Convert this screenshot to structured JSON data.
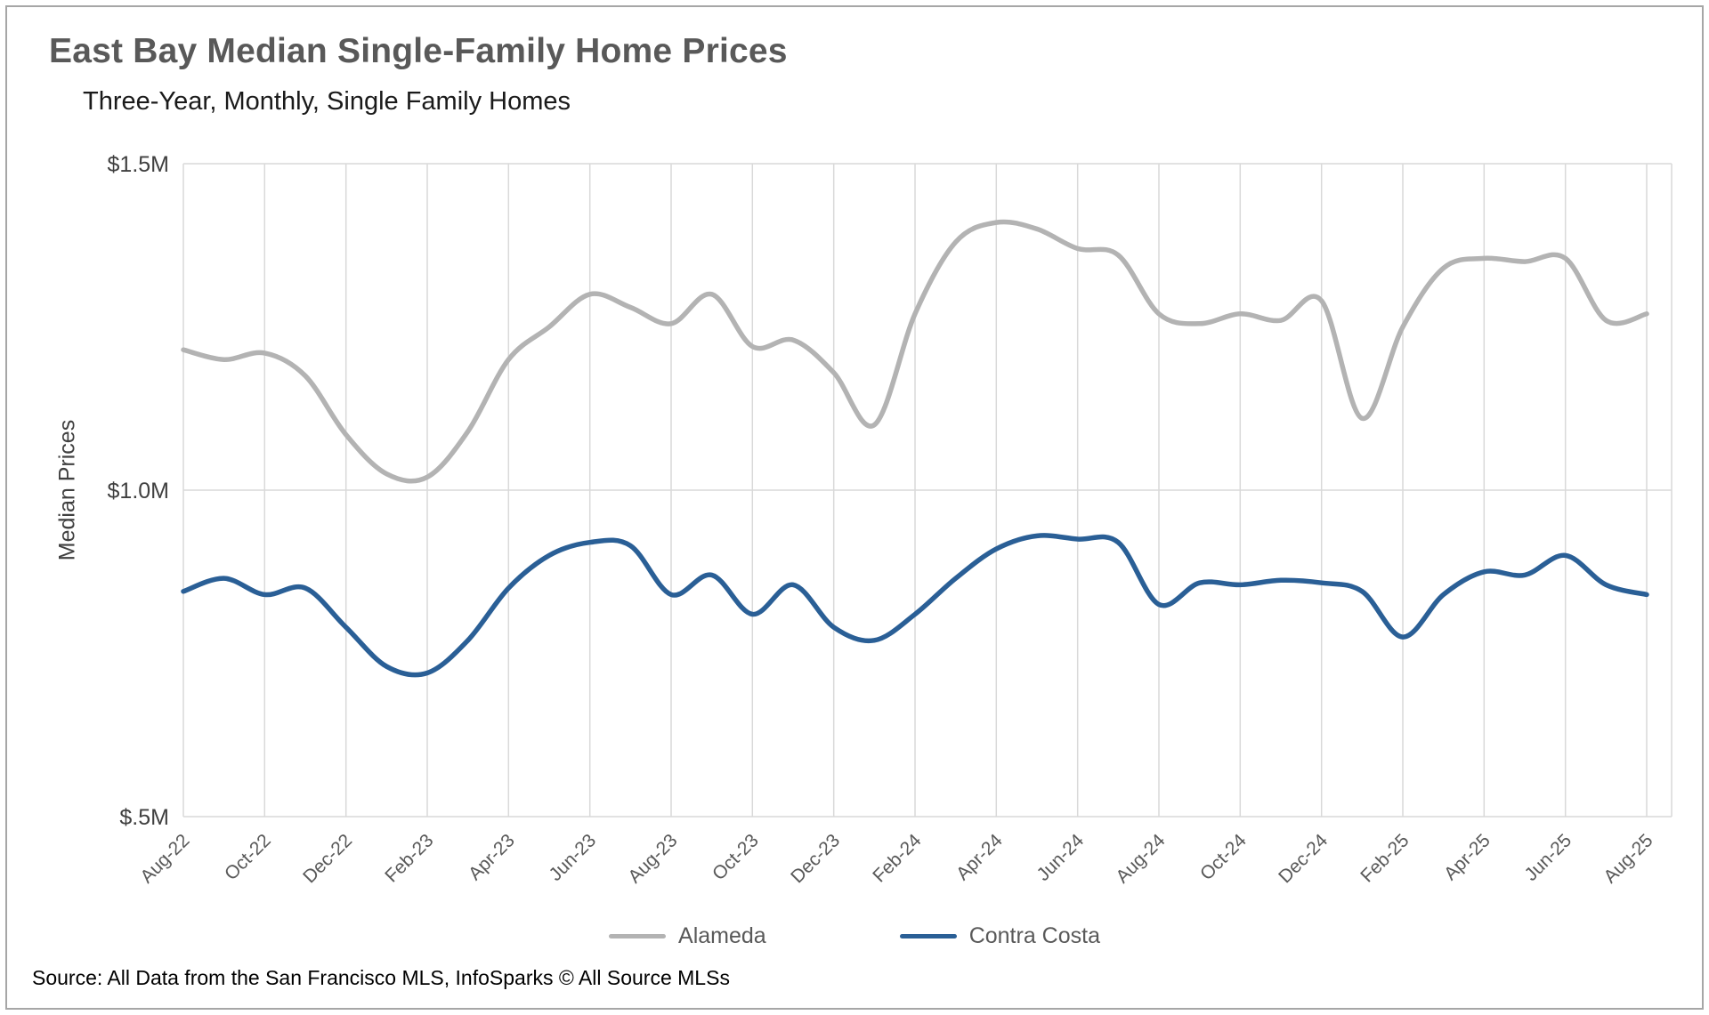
{
  "title": "East Bay Median Single-Family Home Prices",
  "subtitle": "Three-Year, Monthly, Single Family Homes",
  "source": "Source: All Data from the San Francisco MLS, InfoSparks © All Source MLSs",
  "chart_data": {
    "type": "line",
    "title": "East Bay Median Single-Family Home Prices",
    "subtitle": "Three-Year, Monthly, Single Family Homes",
    "xlabel": "",
    "ylabel": "Median Prices",
    "ylim": [
      0.5,
      1.5
    ],
    "y_ticks": [
      {
        "value": 1.5,
        "label": "$1.5M"
      },
      {
        "value": 1.0,
        "label": "$1.0M"
      },
      {
        "value": 0.5,
        "label": "$.5M"
      }
    ],
    "x_tick_step": 2,
    "grid": "on",
    "legend_position": "bottom",
    "x": [
      "Aug-22",
      "Sep-22",
      "Oct-22",
      "Nov-22",
      "Dec-22",
      "Jan-23",
      "Feb-23",
      "Mar-23",
      "Apr-23",
      "May-23",
      "Jun-23",
      "Jul-23",
      "Aug-23",
      "Sep-23",
      "Oct-23",
      "Nov-23",
      "Dec-23",
      "Jan-24",
      "Feb-24",
      "Mar-24",
      "Apr-24",
      "May-24",
      "Jun-24",
      "Jul-24",
      "Aug-24",
      "Sep-24",
      "Oct-24",
      "Nov-24",
      "Dec-24",
      "Jan-25",
      "Feb-25",
      "Mar-25",
      "Apr-25",
      "May-25",
      "Jun-25",
      "Jul-25",
      "Aug-25"
    ],
    "series": [
      {
        "name": "Alameda",
        "color": "#b3b3b3",
        "values": [
          1.215,
          1.2,
          1.21,
          1.175,
          1.085,
          1.025,
          1.02,
          1.09,
          1.2,
          1.25,
          1.3,
          1.28,
          1.255,
          1.3,
          1.22,
          1.23,
          1.18,
          1.1,
          1.27,
          1.38,
          1.41,
          1.4,
          1.37,
          1.36,
          1.27,
          1.255,
          1.27,
          1.26,
          1.29,
          1.11,
          1.25,
          1.34,
          1.355,
          1.35,
          1.355,
          1.26,
          1.27
        ]
      },
      {
        "name": "Contra Costa",
        "color": "#2a5f96",
        "values": [
          0.845,
          0.865,
          0.84,
          0.85,
          0.79,
          0.73,
          0.72,
          0.77,
          0.85,
          0.9,
          0.92,
          0.915,
          0.84,
          0.87,
          0.81,
          0.855,
          0.79,
          0.77,
          0.81,
          0.865,
          0.91,
          0.93,
          0.925,
          0.92,
          0.825,
          0.858,
          0.855,
          0.862,
          0.858,
          0.845,
          0.775,
          0.84,
          0.875,
          0.87,
          0.9,
          0.855,
          0.84
        ]
      }
    ]
  }
}
